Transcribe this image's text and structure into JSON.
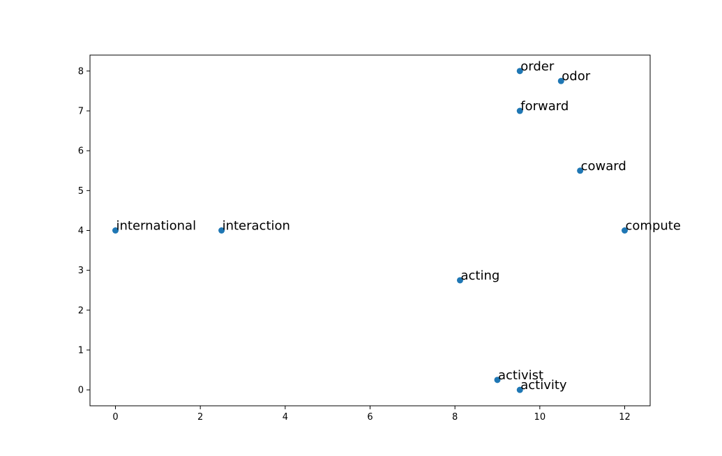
{
  "chart_data": {
    "type": "scatter",
    "title": "",
    "xlabel": "",
    "ylabel": "",
    "xlim": [
      -0.6,
      12.6
    ],
    "ylim": [
      -0.4,
      8.4
    ],
    "grid": false,
    "marker_color": "#1f77b4",
    "x_ticks": [
      0,
      2,
      4,
      6,
      8,
      10,
      12
    ],
    "y_ticks": [
      0,
      1,
      2,
      3,
      4,
      5,
      6,
      7,
      8
    ],
    "points": [
      {
        "label": "order",
        "x": 9.53,
        "y": 8.0
      },
      {
        "label": "odor",
        "x": 10.5,
        "y": 7.75
      },
      {
        "label": "forward",
        "x": 9.53,
        "y": 7.0
      },
      {
        "label": "coward",
        "x": 10.95,
        "y": 5.5
      },
      {
        "label": "international",
        "x": 0.0,
        "y": 4.0
      },
      {
        "label": "interaction",
        "x": 2.5,
        "y": 4.0
      },
      {
        "label": "compute",
        "x": 12.0,
        "y": 4.0
      },
      {
        "label": "acting",
        "x": 8.12,
        "y": 2.75
      },
      {
        "label": "activist",
        "x": 9.0,
        "y": 0.25
      },
      {
        "label": "activity",
        "x": 9.53,
        "y": 0.0
      }
    ]
  }
}
